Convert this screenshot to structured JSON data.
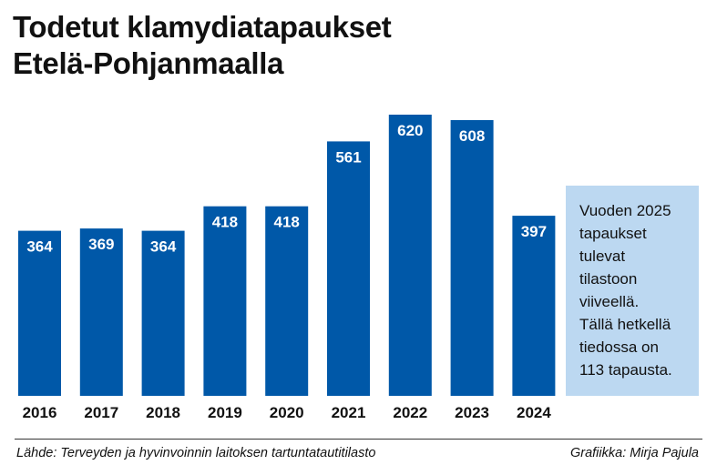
{
  "chart_data": {
    "type": "bar",
    "title_lines": [
      "Todetut klamydiatapaukset",
      "Etelä-Pohjanmaalla"
    ],
    "categories": [
      "2016",
      "2017",
      "2018",
      "2019",
      "2020",
      "2021",
      "2022",
      "2023",
      "2024"
    ],
    "values": [
      364,
      369,
      364,
      418,
      418,
      561,
      620,
      608,
      397
    ],
    "xlabel": "",
    "ylabel": "",
    "ylim": [
      0,
      640
    ],
    "grid": false,
    "legend": "none",
    "bar_color": "#0058a8"
  },
  "note": {
    "lines": [
      "Vuoden 2025",
      "tapaukset",
      "tulevat",
      "tilastoon",
      "viiveellä.",
      "Tällä hetkellä",
      "tiedossa on",
      "113 tapausta."
    ],
    "background": "#bcd8f1"
  },
  "footer": {
    "source": "Lähde: Terveyden ja hyvinvoinnin laitoksen tartuntatautitilasto",
    "credit": "Grafiikka: Mirja Pajula"
  }
}
